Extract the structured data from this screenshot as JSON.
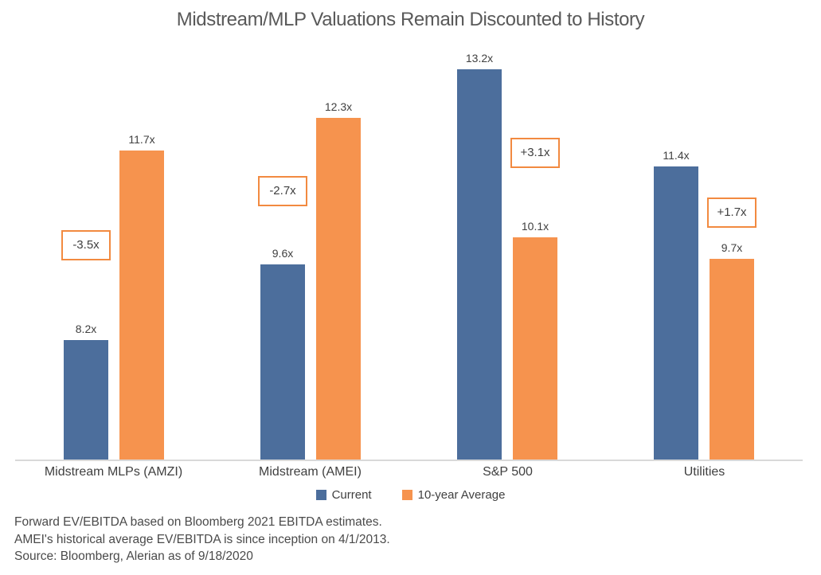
{
  "chart_data": {
    "type": "bar",
    "title": "Midstream/MLP Valuations Remain Discounted to History",
    "categories": [
      "Midstream MLPs (AMZI)",
      "Midstream (AMEI)",
      "S&P 500",
      "Utilities"
    ],
    "series": [
      {
        "name": "Current",
        "color": "#4c6e9c",
        "values": [
          8.2,
          9.6,
          13.2,
          11.4
        ],
        "labels": [
          "8.2x",
          "9.6x",
          "13.2x",
          "11.4x"
        ]
      },
      {
        "name": "10-year Average",
        "color": "#f6934e",
        "values": [
          11.7,
          12.3,
          10.1,
          9.7
        ],
        "labels": [
          "11.7x",
          "12.3x",
          "10.1x",
          "9.7x"
        ]
      }
    ],
    "diffs": [
      {
        "value": -3.5,
        "label": "-3.5x"
      },
      {
        "value": -2.7,
        "label": "-2.7x"
      },
      {
        "value": 3.1,
        "label": "+3.1x"
      },
      {
        "value": 1.7,
        "label": "+1.7x"
      }
    ],
    "ylim": [
      6,
      13.9
    ],
    "grid": false,
    "legend_position": "bottom",
    "xlabel": "",
    "ylabel": "",
    "annotation_border_color": "#f28a40",
    "axis_line_color": "#d9d9d9"
  },
  "footnotes": [
    "Forward EV/EBITDA based on Bloomberg 2021 EBITDA estimates.",
    "AMEI's historical average EV/EBITDA is since inception on 4/1/2013.",
    "Source: Bloomberg, Alerian as of 9/18/2020"
  ]
}
